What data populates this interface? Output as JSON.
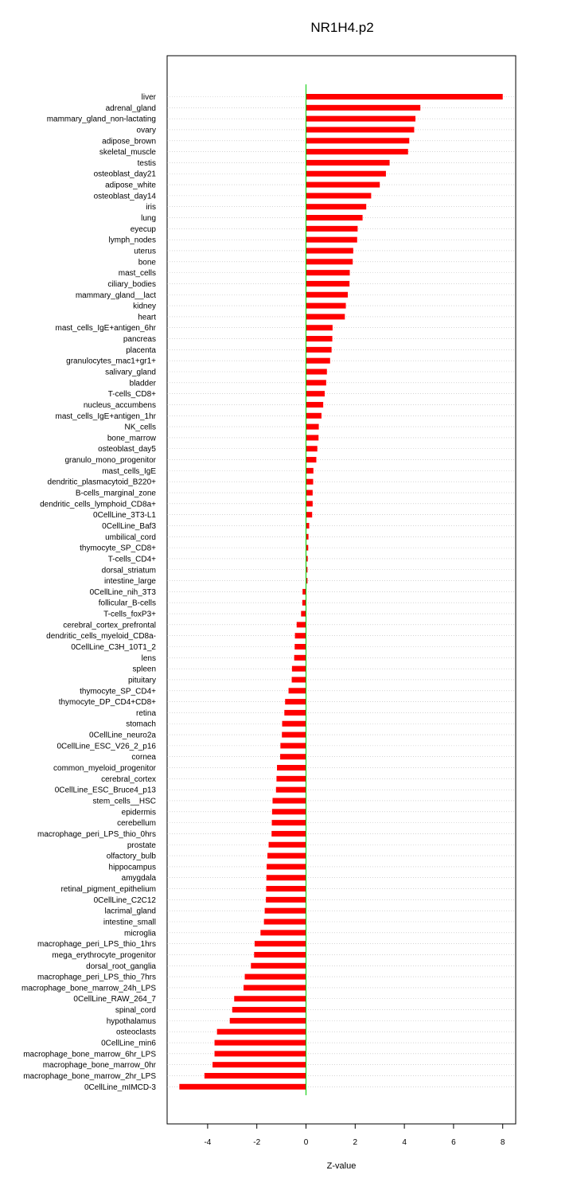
{
  "chart_data": {
    "type": "bar",
    "orientation": "horizontal",
    "title": "NR1H4.p2",
    "xlabel": "Z-value",
    "ylabel": "",
    "xlim": [
      -5.6,
      8.4
    ],
    "xticks": [
      -4,
      -2,
      0,
      2,
      4,
      6,
      8
    ],
    "grid": true,
    "bar_color": "#ff0000",
    "zero_line_color": "#00cc00",
    "categories": [
      "liver",
      "adrenal_gland",
      "mammary_gland_non-lactating",
      "ovary",
      "adipose_brown",
      "skeletal_muscle",
      "testis",
      "osteoblast_day21",
      "adipose_white",
      "osteoblast_day14",
      "iris",
      "lung",
      "eyecup",
      "lymph_nodes",
      "uterus",
      "bone",
      "mast_cells",
      "ciliary_bodies",
      "mammary_gland__lact",
      "kidney",
      "heart",
      "mast_cells_IgE+antigen_6hr",
      "pancreas",
      "placenta",
      "granulocytes_mac1+gr1+",
      "salivary_gland",
      "bladder",
      "T-cells_CD8+",
      "nucleus_accumbens",
      "mast_cells_IgE+antigen_1hr",
      "NK_cells",
      "bone_marrow",
      "osteoblast_day5",
      "granulo_mono_progenitor",
      "mast_cells_IgE",
      "dendritic_plasmacytoid_B220+",
      "B-cells_marginal_zone",
      "dendritic_cells_lymphoid_CD8a+",
      "0CellLine_3T3-L1",
      "0CellLine_Baf3",
      "umbilical_cord",
      "thymocyte_SP_CD8+",
      "T-cells_CD4+",
      "dorsal_striatum",
      "intestine_large",
      "0CellLine_nih_3T3",
      "follicular_B-cells",
      "T-cells_foxP3+",
      "cerebral_cortex_prefrontal",
      "dendritic_cells_myeloid_CD8a-",
      "0CellLine_C3H_10T1_2",
      "lens",
      "spleen",
      "pituitary",
      "thymocyte_SP_CD4+",
      "thymocyte_DP_CD4+CD8+",
      "retina",
      "stomach",
      "0CellLine_neuro2a",
      "0CellLine_ESC_V26_2_p16",
      "cornea",
      "common_myeloid_progenitor",
      "cerebral_cortex",
      "0CellLine_ESC_Bruce4_p13",
      "stem_cells__HSC",
      "epidermis",
      "cerebellum",
      "macrophage_peri_LPS_thio_0hrs",
      "prostate",
      "olfactory_bulb",
      "hippocampus",
      "amygdala",
      "retinal_pigment_epithelium",
      "0CellLine_C2C12",
      "lacrimal_gland",
      "intestine_small",
      "microglia",
      "macrophage_peri_LPS_thio_1hrs",
      "mega_erythrocyte_progenitor",
      "dorsal_root_ganglia",
      "macrophage_peri_LPS_thio_7hrs",
      "macrophage_bone_marrow_24h_LPS",
      "0CellLine_RAW_264_7",
      "spinal_cord",
      "hypothalamus",
      "osteoclasts",
      "0CellLine_min6",
      "macrophage_bone_marrow_6hr_LPS",
      "macrophage_bone_marrow_0hr",
      "macrophage_bone_marrow_2hr_LPS",
      "0CellLine_mIMCD-3"
    ],
    "values": [
      8.0,
      4.65,
      4.45,
      4.4,
      4.2,
      4.15,
      3.4,
      3.25,
      3.0,
      2.65,
      2.45,
      2.3,
      2.1,
      2.08,
      1.92,
      1.9,
      1.78,
      1.77,
      1.7,
      1.62,
      1.58,
      1.08,
      1.07,
      1.04,
      0.98,
      0.85,
      0.82,
      0.76,
      0.7,
      0.63,
      0.52,
      0.51,
      0.46,
      0.42,
      0.3,
      0.29,
      0.27,
      0.27,
      0.25,
      0.13,
      0.1,
      0.09,
      0.07,
      0.06,
      0.06,
      -0.14,
      -0.15,
      -0.2,
      -0.38,
      -0.45,
      -0.46,
      -0.48,
      -0.57,
      -0.58,
      -0.71,
      -0.85,
      -0.88,
      -0.97,
      -0.98,
      -1.04,
      -1.05,
      -1.18,
      -1.2,
      -1.22,
      -1.36,
      -1.38,
      -1.39,
      -1.4,
      -1.52,
      -1.57,
      -1.6,
      -1.61,
      -1.62,
      -1.63,
      -1.68,
      -1.71,
      -1.85,
      -2.09,
      -2.11,
      -2.24,
      -2.49,
      -2.54,
      -2.92,
      -3.0,
      -3.1,
      -3.62,
      -3.72,
      -3.72,
      -3.8,
      -4.13,
      -5.15
    ]
  }
}
